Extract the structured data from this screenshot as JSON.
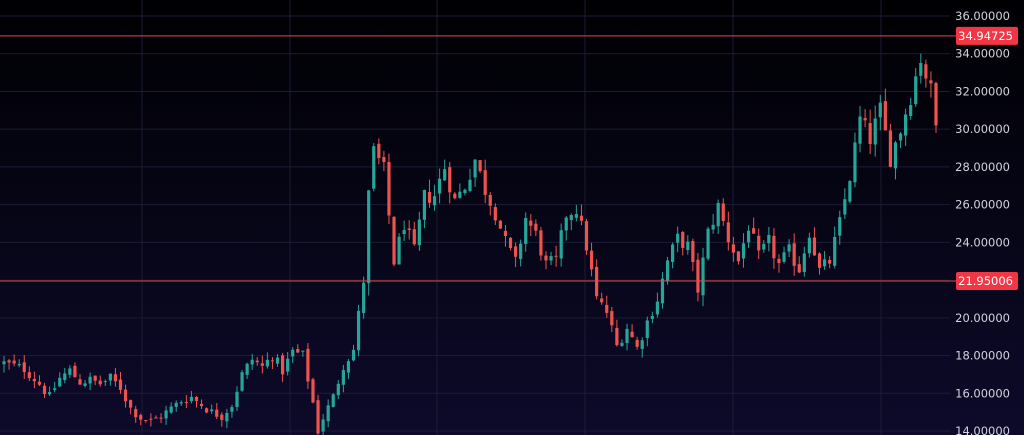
{
  "colors": {
    "up": "#26a69a",
    "down": "#ef5350",
    "grid": "#1d1b33",
    "axis_text": "#d1d4dc",
    "hline": "#e0454b",
    "badge": "#f23645",
    "badge_text": "#ffffff"
  },
  "chart_data": {
    "type": "candlestick",
    "ylim": [
      14,
      36.5
    ],
    "grid": true,
    "y_ticks": [
      "14.00000",
      "16.00000",
      "18.00000",
      "20.00000",
      "22.00000",
      "24.00000",
      "26.00000",
      "28.00000",
      "30.00000",
      "32.00000",
      "34.00000",
      "36.00000"
    ],
    "y_tick_values": [
      14,
      16,
      18,
      20,
      22,
      24,
      26,
      28,
      30,
      32,
      34,
      36
    ],
    "price_lines": [
      {
        "value": 34.94725,
        "label": "34.94725"
      },
      {
        "value": 21.95006,
        "label": "21.95006"
      }
    ],
    "close_path": [
      [
        0,
        17.6
      ],
      [
        4,
        17.3
      ],
      [
        7,
        16.5
      ],
      [
        9,
        15.8
      ],
      [
        11,
        16.8
      ],
      [
        13,
        17.2
      ],
      [
        15,
        16.6
      ],
      [
        17,
        16.7
      ],
      [
        19,
        16.5
      ],
      [
        21,
        16.8
      ],
      [
        23,
        16.3
      ],
      [
        25,
        15.2
      ],
      [
        27,
        14.7
      ],
      [
        29,
        14.5
      ],
      [
        31,
        14.8
      ],
      [
        33,
        15.2
      ],
      [
        35,
        15.6
      ],
      [
        37,
        15.8
      ],
      [
        39,
        15.4
      ],
      [
        41,
        15.0
      ],
      [
        43,
        14.8
      ],
      [
        45,
        15.4
      ],
      [
        47,
        17.0
      ],
      [
        49,
        17.8
      ],
      [
        51,
        17.4
      ],
      [
        53,
        18.0
      ],
      [
        55,
        17.2
      ],
      [
        57,
        18.2
      ],
      [
        59,
        18.0
      ],
      [
        61,
        15.5
      ],
      [
        62,
        14.0
      ],
      [
        63,
        14.7
      ],
      [
        65,
        15.8
      ],
      [
        67,
        17.5
      ],
      [
        69,
        18.3
      ],
      [
        71,
        22.0
      ],
      [
        72,
        26.5
      ],
      [
        73,
        28.8
      ],
      [
        75,
        27.8
      ],
      [
        77,
        23.0
      ],
      [
        79,
        25.0
      ],
      [
        81,
        23.5
      ],
      [
        83,
        26.4
      ],
      [
        85,
        26.5
      ],
      [
        87,
        28.0
      ],
      [
        89,
        26.2
      ],
      [
        91,
        27.0
      ],
      [
        93,
        28.4
      ],
      [
        95,
        26.8
      ],
      [
        97,
        25.6
      ],
      [
        99,
        24.0
      ],
      [
        101,
        22.9
      ],
      [
        103,
        25.3
      ],
      [
        105,
        24.4
      ],
      [
        107,
        22.8
      ],
      [
        109,
        23.0
      ],
      [
        111,
        25.5
      ],
      [
        113,
        25.8
      ],
      [
        115,
        23.8
      ],
      [
        117,
        21.0
      ],
      [
        119,
        20.3
      ],
      [
        121,
        18.5
      ],
      [
        123,
        19.5
      ],
      [
        125,
        18.4
      ],
      [
        127,
        19.8
      ],
      [
        129,
        21.0
      ],
      [
        131,
        23.0
      ],
      [
        133,
        24.2
      ],
      [
        135,
        23.8
      ],
      [
        137,
        21.5
      ],
      [
        139,
        24.5
      ],
      [
        141,
        25.9
      ],
      [
        143,
        24.2
      ],
      [
        145,
        23.0
      ],
      [
        147,
        24.9
      ],
      [
        149,
        23.2
      ],
      [
        151,
        24.0
      ],
      [
        153,
        22.8
      ],
      [
        155,
        23.5
      ],
      [
        157,
        22.6
      ],
      [
        159,
        24.6
      ],
      [
        161,
        22.5
      ],
      [
        163,
        23.0
      ],
      [
        165,
        25.0
      ],
      [
        167,
        27.5
      ],
      [
        169,
        30.5
      ],
      [
        171,
        29.5
      ],
      [
        173,
        31.0
      ],
      [
        175,
        28.5
      ],
      [
        177,
        30.0
      ],
      [
        179,
        31.8
      ],
      [
        181,
        33.8
      ],
      [
        183,
        32.0
      ],
      [
        184,
        30.2
      ]
    ],
    "n_candles": 185
  }
}
